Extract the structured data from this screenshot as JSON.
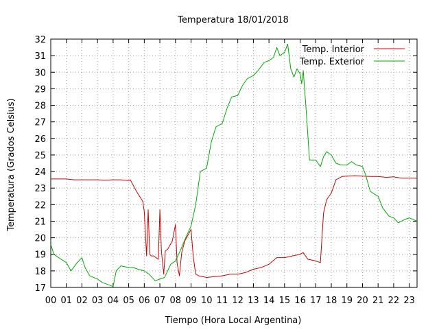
{
  "chart_data": {
    "type": "line",
    "title": "Temperatura 18/01/2018",
    "xlabel": "Tiempo (Hora Local Argentina)",
    "ylabel": "Temperatura (Grados Celsius)",
    "xlim": [
      0,
      23.5
    ],
    "ylim": [
      17,
      32
    ],
    "x_ticks": [
      0,
      1,
      2,
      3,
      4,
      5,
      6,
      7,
      8,
      9,
      10,
      11,
      12,
      13,
      14,
      15,
      16,
      17,
      18,
      19,
      20,
      21,
      22,
      23
    ],
    "x_tick_labels": [
      "00",
      "01",
      "02",
      "03",
      "04",
      "05",
      "06",
      "07",
      "08",
      "09",
      "10",
      "11",
      "12",
      "13",
      "14",
      "15",
      "16",
      "17",
      "18",
      "19",
      "20",
      "21",
      "22",
      "23"
    ],
    "y_ticks": [
      17,
      18,
      19,
      20,
      21,
      22,
      23,
      24,
      25,
      26,
      27,
      28,
      29,
      30,
      31,
      32
    ],
    "grid": true,
    "legend_position": "top-right",
    "series": [
      {
        "name": "Temp. Interior",
        "color": "#cc0000",
        "x": [
          0,
          0.5,
          1,
          1.5,
          2,
          2.5,
          3,
          3.5,
          4,
          4.5,
          5,
          5.1,
          5.5,
          5.9,
          6.0,
          6.15,
          6.25,
          6.35,
          6.45,
          6.6,
          6.9,
          7.0,
          7.1,
          7.25,
          7.35,
          7.5,
          7.8,
          8.0,
          8.1,
          8.25,
          8.4,
          8.6,
          9.0,
          9.15,
          9.3,
          9.5,
          10,
          10.5,
          11,
          11.5,
          12,
          12.5,
          13,
          13.5,
          14,
          14.5,
          15,
          15.5,
          16,
          16.2,
          16.5,
          17,
          17.3,
          17.5,
          17.7,
          18,
          18.3,
          18.7,
          19,
          19.5,
          20,
          20.5,
          21,
          21.5,
          22,
          22.5,
          23,
          23.5
        ],
        "y": [
          23.55,
          23.55,
          23.55,
          23.5,
          23.5,
          23.5,
          23.5,
          23.48,
          23.5,
          23.5,
          23.45,
          23.5,
          22.8,
          22.2,
          21.6,
          18.9,
          21.7,
          19.0,
          18.9,
          18.9,
          18.7,
          21.7,
          19.2,
          17.8,
          19.2,
          19.3,
          19.8,
          20.8,
          18.5,
          17.7,
          19.1,
          19.8,
          20.5,
          18.8,
          17.8,
          17.7,
          17.6,
          17.65,
          17.7,
          17.8,
          17.8,
          17.9,
          18.1,
          18.2,
          18.4,
          18.8,
          18.8,
          18.9,
          19.0,
          19.1,
          18.7,
          18.6,
          18.5,
          21.5,
          22.3,
          22.7,
          23.5,
          23.7,
          23.72,
          23.75,
          23.72,
          23.7,
          23.7,
          23.65,
          23.68,
          23.6,
          23.6,
          23.6
        ]
      },
      {
        "name": "Temp. Exterior",
        "color": "#00aa00",
        "x": [
          0,
          0.2,
          0.5,
          1,
          1.3,
          1.7,
          2,
          2.2,
          2.5,
          3,
          3.3,
          3.6,
          4,
          4.2,
          4.5,
          5,
          5.3,
          5.6,
          6,
          6.3,
          6.7,
          7,
          7.3,
          7.7,
          8,
          8.3,
          8.7,
          9,
          9.3,
          9.6,
          10,
          10.3,
          10.6,
          11,
          11.3,
          11.6,
          12,
          12.3,
          12.6,
          13,
          13.3,
          13.7,
          14,
          14.3,
          14.5,
          14.7,
          15,
          15.2,
          15.4,
          15.6,
          15.8,
          16,
          16.1,
          16.2,
          16.4,
          16.6,
          17,
          17.3,
          17.5,
          17.7,
          18,
          18.3,
          18.6,
          19,
          19.3,
          19.6,
          20,
          20.2,
          20.5,
          21,
          21.3,
          21.7,
          22,
          22.3,
          22.7,
          23,
          23.5
        ],
        "y": [
          19.6,
          19.0,
          18.8,
          18.5,
          18.0,
          18.5,
          18.8,
          18.2,
          17.7,
          17.5,
          17.3,
          17.2,
          17.05,
          18.0,
          18.3,
          18.2,
          18.2,
          18.1,
          18.0,
          17.8,
          17.4,
          17.5,
          17.6,
          18.4,
          18.6,
          19.2,
          20.1,
          20.7,
          22.0,
          24.0,
          24.2,
          25.8,
          26.7,
          26.9,
          27.8,
          28.5,
          28.6,
          29.2,
          29.6,
          29.8,
          30.1,
          30.6,
          30.7,
          30.9,
          31.5,
          31.0,
          31.2,
          31.7,
          30.2,
          29.7,
          30.2,
          29.9,
          29.3,
          30.1,
          27.5,
          24.7,
          24.7,
          24.3,
          24.9,
          25.2,
          25.0,
          24.5,
          24.4,
          24.4,
          24.6,
          24.4,
          24.3,
          23.8,
          22.8,
          22.5,
          21.8,
          21.3,
          21.2,
          20.9,
          21.1,
          21.2,
          21.0
        ]
      }
    ]
  }
}
